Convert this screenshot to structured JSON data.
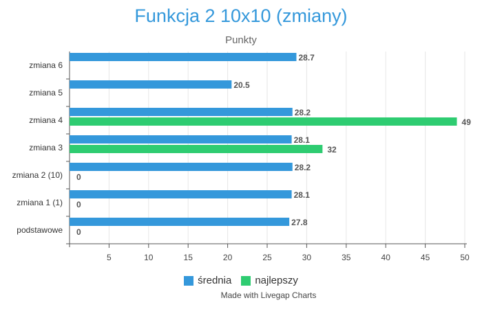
{
  "chart_data": {
    "type": "bar",
    "orientation": "horizontal",
    "title": "Funkcja 2 10x10 (zmiany)",
    "subtitle": "Punkty",
    "categories": [
      "zmiana 6",
      "zmiana 5",
      "zmiana 4",
      "zmiana 3",
      "zmiana 2 (10)",
      "zmiana 1 (1)",
      "podstawowe"
    ],
    "series": [
      {
        "name": "średnia",
        "color": "#3498db",
        "values": [
          28.7,
          20.5,
          28.2,
          28.1,
          28.2,
          28.1,
          27.8
        ],
        "labels": [
          "28.7",
          "20.5",
          "28.2",
          "28.1",
          "28.2",
          "28.1",
          "27.8"
        ]
      },
      {
        "name": "najlepszy",
        "color": "#2ecc71",
        "values": [
          null,
          null,
          49,
          32,
          0,
          0,
          0
        ],
        "labels": [
          null,
          null,
          "49",
          "32",
          "0",
          "0",
          "0"
        ]
      }
    ],
    "xlim": [
      0,
      50
    ],
    "xticks": [
      5,
      10,
      15,
      20,
      25,
      30,
      35,
      40,
      45,
      50
    ],
    "grid": true,
    "legend_position": "bottom"
  },
  "credit": "Made with Livegap Charts"
}
